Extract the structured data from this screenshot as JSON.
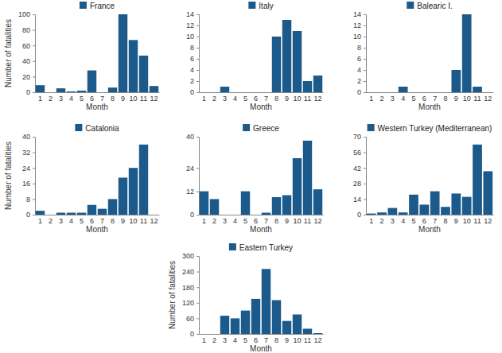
{
  "chart_data": [
    {
      "type": "bar",
      "categories": [
        "1",
        "2",
        "3",
        "4",
        "5",
        "6",
        "7",
        "8",
        "9",
        "10",
        "11",
        "12"
      ],
      "series": [
        {
          "name": "France",
          "color": "#1b5a8a",
          "values": [
            9,
            0,
            5,
            1,
            2,
            28,
            0,
            6,
            100,
            67,
            47,
            8
          ]
        }
      ],
      "x_label": "Month",
      "y_label": "Number of fatalities",
      "ylim": [
        0,
        100
      ],
      "yticks": [
        0,
        20,
        40,
        60,
        80,
        100
      ],
      "legend": "top"
    },
    {
      "type": "bar",
      "categories": [
        "1",
        "2",
        "3",
        "4",
        "5",
        "6",
        "7",
        "8",
        "9",
        "10",
        "11",
        "12"
      ],
      "series": [
        {
          "name": "Italy",
          "color": "#1b5a8a",
          "values": [
            0,
            0,
            1,
            0,
            0,
            0,
            0,
            10,
            13,
            11,
            2,
            3
          ]
        }
      ],
      "x_label": "Month",
      "ylim": [
        0,
        14
      ],
      "yticks": [
        0,
        2,
        4,
        6,
        8,
        10,
        12,
        14
      ],
      "legend": "top"
    },
    {
      "type": "bar",
      "categories": [
        "1",
        "2",
        "3",
        "4",
        "5",
        "6",
        "7",
        "8",
        "9",
        "10",
        "11",
        "12"
      ],
      "series": [
        {
          "name": "Balearic I.",
          "color": "#1b5a8a",
          "values": [
            0,
            0,
            0,
            1,
            0,
            0,
            0,
            0,
            4,
            14,
            1,
            0
          ]
        }
      ],
      "x_label": "Month",
      "ylim": [
        0,
        14
      ],
      "yticks": [
        0,
        2,
        4,
        6,
        8,
        10,
        12,
        14
      ],
      "legend": "top"
    },
    {
      "type": "bar",
      "categories": [
        "1",
        "2",
        "3",
        "4",
        "5",
        "6",
        "7",
        "8",
        "9",
        "10",
        "11",
        "12"
      ],
      "series": [
        {
          "name": "Catalonia",
          "color": "#1b5a8a",
          "values": [
            2,
            0,
            1,
            1,
            1,
            5,
            3,
            8,
            19,
            24,
            36,
            0
          ]
        }
      ],
      "x_label": "Month",
      "y_label": "Number of fatalities",
      "ylim": [
        0,
        40
      ],
      "yticks": [
        0,
        8,
        16,
        24,
        32,
        40
      ],
      "legend": "top"
    },
    {
      "type": "bar",
      "categories": [
        "1",
        "2",
        "3",
        "4",
        "5",
        "6",
        "7",
        "8",
        "9",
        "10",
        "11",
        "12"
      ],
      "series": [
        {
          "name": "Greece",
          "color": "#1b5a8a",
          "values": [
            12,
            8,
            0,
            0,
            12,
            0,
            1,
            9,
            10,
            29,
            38,
            13
          ]
        }
      ],
      "x_label": "Month",
      "ylim": [
        0,
        40
      ],
      "yticks": [
        0,
        12,
        24,
        40
      ],
      "legend": "top"
    },
    {
      "type": "bar",
      "categories": [
        "1",
        "2",
        "3",
        "4",
        "5",
        "6",
        "7",
        "8",
        "9",
        "10",
        "11",
        "12"
      ],
      "series": [
        {
          "name": "Western Turkey (Mediterranean)",
          "color": "#1b5a8a",
          "values": [
            1,
            2,
            6,
            2,
            18,
            9,
            21,
            7,
            19,
            16,
            63,
            39
          ]
        }
      ],
      "x_label": "Month",
      "ylim": [
        0,
        70
      ],
      "yticks": [
        0,
        14,
        28,
        42,
        56,
        70
      ],
      "legend": "top"
    },
    {
      "type": "bar",
      "categories": [
        "1",
        "2",
        "3",
        "4",
        "5",
        "6",
        "7",
        "8",
        "9",
        "10",
        "11",
        "12"
      ],
      "series": [
        {
          "name": "Eastern Turkey",
          "color": "#1b5a8a",
          "values": [
            0,
            0,
            70,
            60,
            90,
            135,
            250,
            130,
            50,
            75,
            20,
            3
          ]
        }
      ],
      "x_label": "Month",
      "y_label": "Number of fatalities",
      "ylim": [
        0,
        300
      ],
      "yticks": [
        0,
        60,
        120,
        180,
        240,
        300
      ],
      "legend": "top"
    }
  ]
}
